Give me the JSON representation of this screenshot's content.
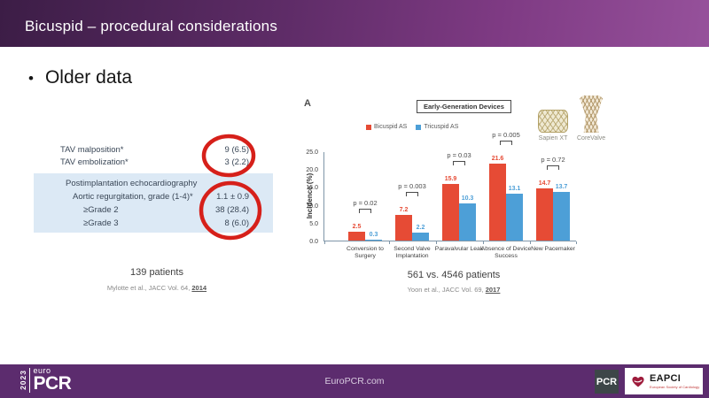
{
  "header": {
    "title": "Bicuspid – procedural considerations"
  },
  "bullet": {
    "marker": "•",
    "text": "Older data"
  },
  "left_figure": {
    "table": {
      "rows": [
        {
          "label": "TAV malposition*",
          "value": "9 (6.5)",
          "indent": 0,
          "shaded": false
        },
        {
          "label": "TAV embolization*",
          "value": "3 (2.2)",
          "indent": 0,
          "shaded": false
        },
        {
          "label": "Postimplantation echocardiography",
          "value": "",
          "indent": 1,
          "shaded": true
        },
        {
          "label": "Aortic regurgitation, grade (1-4)*",
          "value": "1.1 ± 0.9",
          "indent": 2,
          "shaded": true
        },
        {
          "label": "≥Grade 2",
          "value": "38 (28.4)",
          "indent": 3,
          "shaded": true
        },
        {
          "label": "≥Grade 3",
          "value": "8 (6.0)",
          "indent": 3,
          "shaded": true
        }
      ]
    },
    "caption": "139 patients",
    "source_text": "Mylotte et al., JACC Vol. 64, ",
    "source_year": "2014"
  },
  "right_figure": {
    "panel_label": "A",
    "box_title": "Early-Generation Devices",
    "devices": [
      {
        "name": "Sapien XT"
      },
      {
        "name": "CoreValve"
      }
    ],
    "caption": "561 vs. 4546 patients",
    "source_text": "Yoon et al., JACC Vol. 69, ",
    "source_year": "2017"
  },
  "chart_data": {
    "type": "bar",
    "title": "Early-Generation Devices",
    "ylabel": "Incidence (%)",
    "ylim": [
      0,
      25
    ],
    "yticks": [
      0,
      5,
      10,
      15,
      20,
      25
    ],
    "grid": false,
    "legend_position": "top",
    "categories": [
      "Conversion to Surgery",
      "Second Valve Implantation",
      "Paravalvular Leak",
      "Absence of Device Success",
      "New Pacemaker"
    ],
    "series": [
      {
        "name": "Bicuspid AS",
        "color": "#E64B35",
        "values": [
          2.5,
          7.2,
          15.9,
          21.6,
          14.7
        ]
      },
      {
        "name": "Tricuspid AS",
        "color": "#4D9FD7",
        "values": [
          0.3,
          2.2,
          10.3,
          13.1,
          13.7
        ]
      }
    ],
    "p_values": [
      "p = 0.02",
      "p = 0.003",
      "p = 0.03",
      "p = 0.005",
      "p = 0.72"
    ]
  },
  "footer": {
    "logo": {
      "year": "2023",
      "euro": "euro",
      "pcr": "PCR"
    },
    "website": "EuroPCR.com",
    "pcr_badge": "PCR",
    "eapci": {
      "label": "EAPCI",
      "subtitle": "European Society of Cardiology"
    }
  },
  "colors": {
    "header_gradient_start": "#3C1D46",
    "header_gradient_end": "#96519B",
    "footer_background": "#5C2C6E",
    "bicuspid_red": "#E64B35",
    "tricuspid_blue": "#4D9FD7",
    "annotation_red": "#D6201A",
    "table_shade_blue": "#DCE9F5"
  }
}
